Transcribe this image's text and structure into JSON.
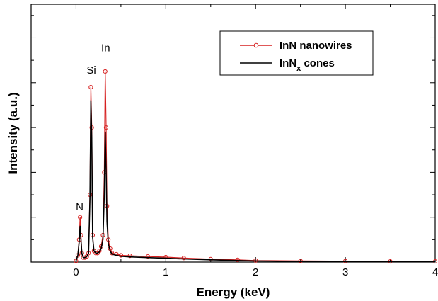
{
  "chart_data": {
    "type": "line",
    "title": "",
    "xlabel": "Energy (keV)",
    "ylabel": "Intensity (a.u.)",
    "xlim": [
      -0.5,
      4.0
    ],
    "ylim": [
      0,
      115
    ],
    "xticks": [
      0,
      1,
      2,
      3,
      4
    ],
    "xtick_labels": [
      "0",
      "1",
      "2",
      "3",
      "4"
    ],
    "ytick_labels_shown": false,
    "grid": false,
    "legend_position": "top-right",
    "annotations": [
      {
        "text": "N",
        "x": 0.04,
        "y": 23
      },
      {
        "text": "Si",
        "x": 0.17,
        "y": 84
      },
      {
        "text": "In",
        "x": 0.33,
        "y": 94
      }
    ],
    "series": [
      {
        "name": "InN nanowires",
        "legend_label": "InN nanowires",
        "color": "#d62020",
        "style": "line-with-open-circles",
        "x": [
          0.0,
          0.02,
          0.035,
          0.045,
          0.055,
          0.065,
          0.08,
          0.1,
          0.12,
          0.14,
          0.155,
          0.165,
          0.175,
          0.185,
          0.2,
          0.22,
          0.24,
          0.26,
          0.28,
          0.3,
          0.315,
          0.325,
          0.335,
          0.345,
          0.36,
          0.38,
          0.4,
          0.45,
          0.5,
          0.6,
          0.8,
          1.0,
          1.2,
          1.5,
          1.8,
          2.0,
          2.5,
          3.0,
          3.5,
          4.0
        ],
        "y": [
          0.5,
          3,
          10,
          20,
          12,
          4,
          2,
          2,
          2.5,
          4,
          30,
          78,
          60,
          12,
          5,
          4,
          4,
          5,
          7,
          12,
          40,
          85,
          60,
          25,
          10,
          6,
          4,
          3.5,
          3,
          2.8,
          2.5,
          2.2,
          1.8,
          1.3,
          1.0,
          0.7,
          0.5,
          0.4,
          0.3,
          0.3
        ]
      },
      {
        "name": "InNx cones",
        "legend_label": "InN",
        "legend_subscript": "x",
        "legend_suffix": " cones",
        "color": "#000000",
        "style": "line",
        "x": [
          0.0,
          0.02,
          0.035,
          0.045,
          0.055,
          0.065,
          0.08,
          0.1,
          0.12,
          0.14,
          0.155,
          0.165,
          0.175,
          0.185,
          0.2,
          0.22,
          0.24,
          0.26,
          0.28,
          0.3,
          0.315,
          0.325,
          0.335,
          0.345,
          0.36,
          0.38,
          0.4,
          0.45,
          0.5,
          0.6,
          0.8,
          1.0,
          1.2,
          1.5,
          1.8,
          2.0,
          2.5,
          3.0,
          3.5,
          4.0
        ],
        "y": [
          0.5,
          3,
          9,
          16,
          10,
          4,
          2,
          2,
          2.5,
          4,
          28,
          72,
          55,
          11,
          5,
          4,
          4,
          4.5,
          6,
          10,
          30,
          58,
          40,
          18,
          8,
          5,
          3.5,
          3,
          2.6,
          2.3,
          2.0,
          1.7,
          1.4,
          1.0,
          0.7,
          0.5,
          0.3,
          0.25,
          0.2,
          0.2
        ]
      }
    ]
  }
}
